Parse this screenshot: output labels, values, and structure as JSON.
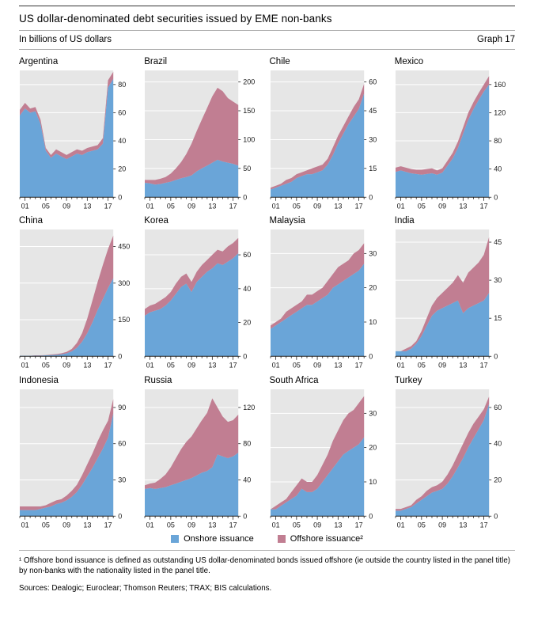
{
  "header": {
    "title": "US dollar-denominated debt securities issued by EME non-banks",
    "subtitle": "In billions of US dollars",
    "graph_label": "Graph 17"
  },
  "legend": [
    {
      "label": "Onshore issuance",
      "color": "#6aa5d8"
    },
    {
      "label": "Offshore issuance²",
      "color": "#c17e92"
    }
  ],
  "style": {
    "plot_bg": "#e6e6e6",
    "grid_color": "#ffffff",
    "axis_color": "#222222"
  },
  "footnotes": {
    "note1": "¹  Offshore bond issuance is defined as outstanding US dollar-denominated bonds issued offshore (ie outside the country listed in the panel title) by non-banks with the nationality listed in the panel title.",
    "sources": "Sources: Dealogic; Euroclear; Thomson Reuters; TRAX; BIS calculations."
  },
  "chart_data": [
    {
      "type": "area",
      "stacked": true,
      "title": "Argentina",
      "x": [
        2000,
        2001,
        2002,
        2003,
        2004,
        2005,
        2006,
        2007,
        2008,
        2009,
        2010,
        2011,
        2012,
        2013,
        2014,
        2015,
        2016,
        2017,
        2018
      ],
      "xticks": [
        2001,
        2005,
        2009,
        2013,
        2017
      ],
      "xtick_labels": [
        "01",
        "05",
        "09",
        "13",
        "17"
      ],
      "ylim": [
        0,
        90
      ],
      "yticks": [
        0,
        20,
        40,
        60,
        80
      ],
      "series": [
        {
          "name": "Onshore issuance",
          "values": [
            58,
            63,
            60,
            61,
            52,
            33,
            28,
            31,
            29,
            27,
            29,
            31,
            30,
            32,
            33,
            34,
            38,
            78,
            84
          ]
        },
        {
          "name": "Offshore issuance",
          "values": [
            4,
            4,
            3,
            3,
            3,
            2,
            2,
            3,
            3,
            3,
            3,
            3,
            3,
            3,
            3,
            3,
            4,
            5,
            5
          ]
        }
      ]
    },
    {
      "type": "area",
      "stacked": true,
      "title": "Brazil",
      "x": [
        2000,
        2001,
        2002,
        2003,
        2004,
        2005,
        2006,
        2007,
        2008,
        2009,
        2010,
        2011,
        2012,
        2013,
        2014,
        2015,
        2016,
        2017,
        2018
      ],
      "xticks": [
        2001,
        2005,
        2009,
        2013,
        2017
      ],
      "xtick_labels": [
        "01",
        "05",
        "09",
        "13",
        "17"
      ],
      "ylim": [
        0,
        220
      ],
      "yticks": [
        0,
        50,
        100,
        150,
        200
      ],
      "series": [
        {
          "name": "Onshore issuance",
          "values": [
            25,
            24,
            22,
            23,
            25,
            27,
            30,
            33,
            35,
            38,
            45,
            50,
            55,
            60,
            65,
            62,
            60,
            58,
            55
          ]
        },
        {
          "name": "Offshore issuance",
          "values": [
            5,
            6,
            8,
            9,
            10,
            14,
            20,
            28,
            40,
            55,
            70,
            85,
            100,
            115,
            125,
            122,
            112,
            108,
            105
          ]
        }
      ]
    },
    {
      "type": "area",
      "stacked": true,
      "title": "Chile",
      "x": [
        2000,
        2001,
        2002,
        2003,
        2004,
        2005,
        2006,
        2007,
        2008,
        2009,
        2010,
        2011,
        2012,
        2013,
        2014,
        2015,
        2016,
        2017,
        2018
      ],
      "xticks": [
        2001,
        2005,
        2009,
        2013,
        2017
      ],
      "xtick_labels": [
        "01",
        "05",
        "09",
        "13",
        "17"
      ],
      "ylim": [
        0,
        66
      ],
      "yticks": [
        0,
        15,
        30,
        45,
        60
      ],
      "series": [
        {
          "name": "Onshore issuance",
          "values": [
            4,
            5,
            6,
            7,
            8,
            10,
            11,
            12,
            12,
            13,
            14,
            17,
            22,
            28,
            33,
            38,
            42,
            46,
            54
          ]
        },
        {
          "name": "Offshore issuance",
          "values": [
            1,
            1,
            1,
            2,
            2,
            2,
            2,
            2,
            3,
            3,
            3,
            3,
            4,
            4,
            4,
            4,
            5,
            5,
            5
          ]
        }
      ]
    },
    {
      "type": "area",
      "stacked": true,
      "title": "Mexico",
      "x": [
        2000,
        2001,
        2002,
        2003,
        2004,
        2005,
        2006,
        2007,
        2008,
        2009,
        2010,
        2011,
        2012,
        2013,
        2014,
        2015,
        2016,
        2017,
        2018
      ],
      "xticks": [
        2001,
        2005,
        2009,
        2013,
        2017
      ],
      "xtick_labels": [
        "01",
        "05",
        "09",
        "13",
        "17"
      ],
      "ylim": [
        0,
        180
      ],
      "yticks": [
        0,
        40,
        80,
        120,
        160
      ],
      "series": [
        {
          "name": "Onshore issuance",
          "values": [
            36,
            38,
            36,
            34,
            33,
            32,
            33,
            34,
            32,
            35,
            45,
            55,
            70,
            90,
            110,
            125,
            138,
            150,
            160
          ]
        },
        {
          "name": "Offshore issuance",
          "values": [
            6,
            6,
            6,
            6,
            6,
            7,
            7,
            7,
            6,
            6,
            7,
            8,
            9,
            9,
            10,
            10,
            10,
            10,
            12
          ]
        }
      ]
    },
    {
      "type": "area",
      "stacked": true,
      "title": "China",
      "x": [
        2000,
        2001,
        2002,
        2003,
        2004,
        2005,
        2006,
        2007,
        2008,
        2009,
        2010,
        2011,
        2012,
        2013,
        2014,
        2015,
        2016,
        2017,
        2018
      ],
      "xticks": [
        2001,
        2005,
        2009,
        2013,
        2017
      ],
      "xtick_labels": [
        "01",
        "05",
        "09",
        "13",
        "17"
      ],
      "ylim": [
        0,
        520
      ],
      "yticks": [
        0,
        150,
        300,
        450
      ],
      "series": [
        {
          "name": "Onshore issuance",
          "values": [
            2,
            2,
            2,
            3,
            3,
            4,
            5,
            6,
            8,
            12,
            20,
            35,
            60,
            95,
            140,
            190,
            235,
            280,
            320
          ]
        },
        {
          "name": "Offshore issuance",
          "values": [
            0,
            0,
            0,
            1,
            1,
            1,
            2,
            3,
            4,
            6,
            10,
            20,
            35,
            60,
            90,
            115,
            140,
            160,
            175
          ]
        }
      ]
    },
    {
      "type": "area",
      "stacked": true,
      "title": "Korea",
      "x": [
        2000,
        2001,
        2002,
        2003,
        2004,
        2005,
        2006,
        2007,
        2008,
        2009,
        2010,
        2011,
        2012,
        2013,
        2014,
        2015,
        2016,
        2017,
        2018
      ],
      "xticks": [
        2001,
        2005,
        2009,
        2013,
        2017
      ],
      "xtick_labels": [
        "01",
        "05",
        "09",
        "13",
        "17"
      ],
      "ylim": [
        0,
        75
      ],
      "yticks": [
        0,
        20,
        40,
        60
      ],
      "series": [
        {
          "name": "Onshore issuance",
          "values": [
            24,
            26,
            27,
            28,
            30,
            33,
            37,
            41,
            43,
            38,
            44,
            47,
            50,
            52,
            55,
            54,
            56,
            58,
            61
          ]
        },
        {
          "name": "Offshore issuance",
          "values": [
            4,
            4,
            4,
            5,
            5,
            5,
            6,
            6,
            6,
            6,
            6,
            7,
            7,
            8,
            8,
            8,
            9,
            9,
            9
          ]
        }
      ]
    },
    {
      "type": "area",
      "stacked": true,
      "title": "Malaysia",
      "x": [
        2000,
        2001,
        2002,
        2003,
        2004,
        2005,
        2006,
        2007,
        2008,
        2009,
        2010,
        2011,
        2012,
        2013,
        2014,
        2015,
        2016,
        2017,
        2018
      ],
      "xticks": [
        2001,
        2005,
        2009,
        2013,
        2017
      ],
      "xtick_labels": [
        "01",
        "05",
        "09",
        "13",
        "17"
      ],
      "ylim": [
        0,
        37
      ],
      "yticks": [
        0,
        10,
        20,
        30
      ],
      "series": [
        {
          "name": "Onshore issuance",
          "values": [
            8,
            9,
            10,
            11,
            12,
            13,
            14,
            15,
            15,
            16,
            17,
            18,
            20,
            21,
            22,
            23,
            24,
            25,
            27
          ]
        },
        {
          "name": "Offshore issuance",
          "values": [
            1,
            1,
            1,
            2,
            2,
            2,
            2,
            3,
            3,
            3,
            3,
            4,
            4,
            5,
            5,
            5,
            6,
            6,
            6
          ]
        }
      ]
    },
    {
      "type": "area",
      "stacked": true,
      "title": "India",
      "x": [
        2000,
        2001,
        2002,
        2003,
        2004,
        2005,
        2006,
        2007,
        2008,
        2009,
        2010,
        2011,
        2012,
        2013,
        2014,
        2015,
        2016,
        2017,
        2018
      ],
      "xticks": [
        2001,
        2005,
        2009,
        2013,
        2017
      ],
      "xtick_labels": [
        "01",
        "05",
        "09",
        "13",
        "17"
      ],
      "ylim": [
        0,
        50
      ],
      "yticks": [
        0,
        15,
        30,
        45
      ],
      "series": [
        {
          "name": "Onshore issuance",
          "values": [
            2,
            2,
            2,
            3,
            5,
            8,
            12,
            16,
            18,
            19,
            20,
            21,
            22,
            17,
            19,
            20,
            21,
            22,
            25
          ]
        },
        {
          "name": "Offshore issuance",
          "values": [
            0,
            0,
            1,
            1,
            1,
            2,
            3,
            4,
            5,
            6,
            7,
            8,
            10,
            12,
            14,
            15,
            16,
            18,
            22
          ]
        }
      ]
    },
    {
      "type": "area",
      "stacked": true,
      "title": "Indonesia",
      "x": [
        2000,
        2001,
        2002,
        2003,
        2004,
        2005,
        2006,
        2007,
        2008,
        2009,
        2010,
        2011,
        2012,
        2013,
        2014,
        2015,
        2016,
        2017,
        2018
      ],
      "xticks": [
        2001,
        2005,
        2009,
        2013,
        2017
      ],
      "xtick_labels": [
        "01",
        "05",
        "09",
        "13",
        "17"
      ],
      "ylim": [
        0,
        105
      ],
      "yticks": [
        0,
        30,
        60,
        90
      ],
      "series": [
        {
          "name": "Onshore issuance",
          "values": [
            5,
            5,
            5,
            5,
            6,
            7,
            8,
            10,
            11,
            13,
            16,
            20,
            26,
            33,
            40,
            48,
            56,
            65,
            85
          ]
        },
        {
          "name": "Offshore issuance",
          "values": [
            3,
            3,
            3,
            3,
            2,
            2,
            3,
            3,
            3,
            4,
            5,
            6,
            8,
            10,
            12,
            14,
            15,
            14,
            12
          ]
        }
      ]
    },
    {
      "type": "area",
      "stacked": true,
      "title": "Russia",
      "x": [
        2000,
        2001,
        2002,
        2003,
        2004,
        2005,
        2006,
        2007,
        2008,
        2009,
        2010,
        2011,
        2012,
        2013,
        2014,
        2015,
        2016,
        2017,
        2018
      ],
      "xticks": [
        2001,
        2005,
        2009,
        2013,
        2017
      ],
      "xtick_labels": [
        "01",
        "05",
        "09",
        "13",
        "17"
      ],
      "ylim": [
        0,
        140
      ],
      "yticks": [
        0,
        40,
        80,
        120
      ],
      "series": [
        {
          "name": "Onshore issuance",
          "values": [
            30,
            31,
            30,
            31,
            32,
            34,
            36,
            38,
            40,
            42,
            45,
            48,
            50,
            54,
            68,
            66,
            64,
            66,
            70
          ]
        },
        {
          "name": "Offshore issuance",
          "values": [
            4,
            5,
            7,
            10,
            14,
            20,
            28,
            36,
            42,
            46,
            52,
            58,
            64,
            76,
            52,
            44,
            40,
            40,
            42
          ]
        }
      ]
    },
    {
      "type": "area",
      "stacked": true,
      "title": "South Africa",
      "x": [
        2000,
        2001,
        2002,
        2003,
        2004,
        2005,
        2006,
        2007,
        2008,
        2009,
        2010,
        2011,
        2012,
        2013,
        2014,
        2015,
        2016,
        2017,
        2018
      ],
      "xticks": [
        2001,
        2005,
        2009,
        2013,
        2017
      ],
      "xtick_labels": [
        "01",
        "05",
        "09",
        "13",
        "17"
      ],
      "ylim": [
        0,
        37
      ],
      "yticks": [
        0,
        10,
        20,
        30
      ],
      "series": [
        {
          "name": "Onshore issuance",
          "values": [
            2,
            2,
            3,
            4,
            5,
            6,
            8,
            7,
            7,
            8,
            10,
            12,
            14,
            16,
            18,
            19,
            20,
            21,
            23
          ]
        },
        {
          "name": "Offshore issuance",
          "values": [
            0,
            1,
            1,
            1,
            2,
            3,
            3,
            3,
            3,
            4,
            5,
            6,
            8,
            9,
            10,
            11,
            11,
            12,
            12
          ]
        }
      ]
    },
    {
      "type": "area",
      "stacked": true,
      "title": "Turkey",
      "x": [
        2000,
        2001,
        2002,
        2003,
        2004,
        2005,
        2006,
        2007,
        2008,
        2009,
        2010,
        2011,
        2012,
        2013,
        2014,
        2015,
        2016,
        2017,
        2018
      ],
      "xticks": [
        2001,
        2005,
        2009,
        2013,
        2017
      ],
      "xtick_labels": [
        "01",
        "05",
        "09",
        "13",
        "17"
      ],
      "ylim": [
        0,
        70
      ],
      "yticks": [
        0,
        20,
        40,
        60
      ],
      "series": [
        {
          "name": "Onshore issuance",
          "values": [
            3,
            3,
            4,
            5,
            7,
            9,
            11,
            13,
            14,
            15,
            18,
            22,
            27,
            32,
            38,
            43,
            48,
            53,
            62
          ]
        },
        {
          "name": "Offshore issuance",
          "values": [
            1,
            1,
            1,
            1,
            2,
            2,
            3,
            3,
            3,
            4,
            5,
            6,
            7,
            8,
            8,
            8,
            7,
            6,
            4
          ]
        }
      ]
    }
  ]
}
